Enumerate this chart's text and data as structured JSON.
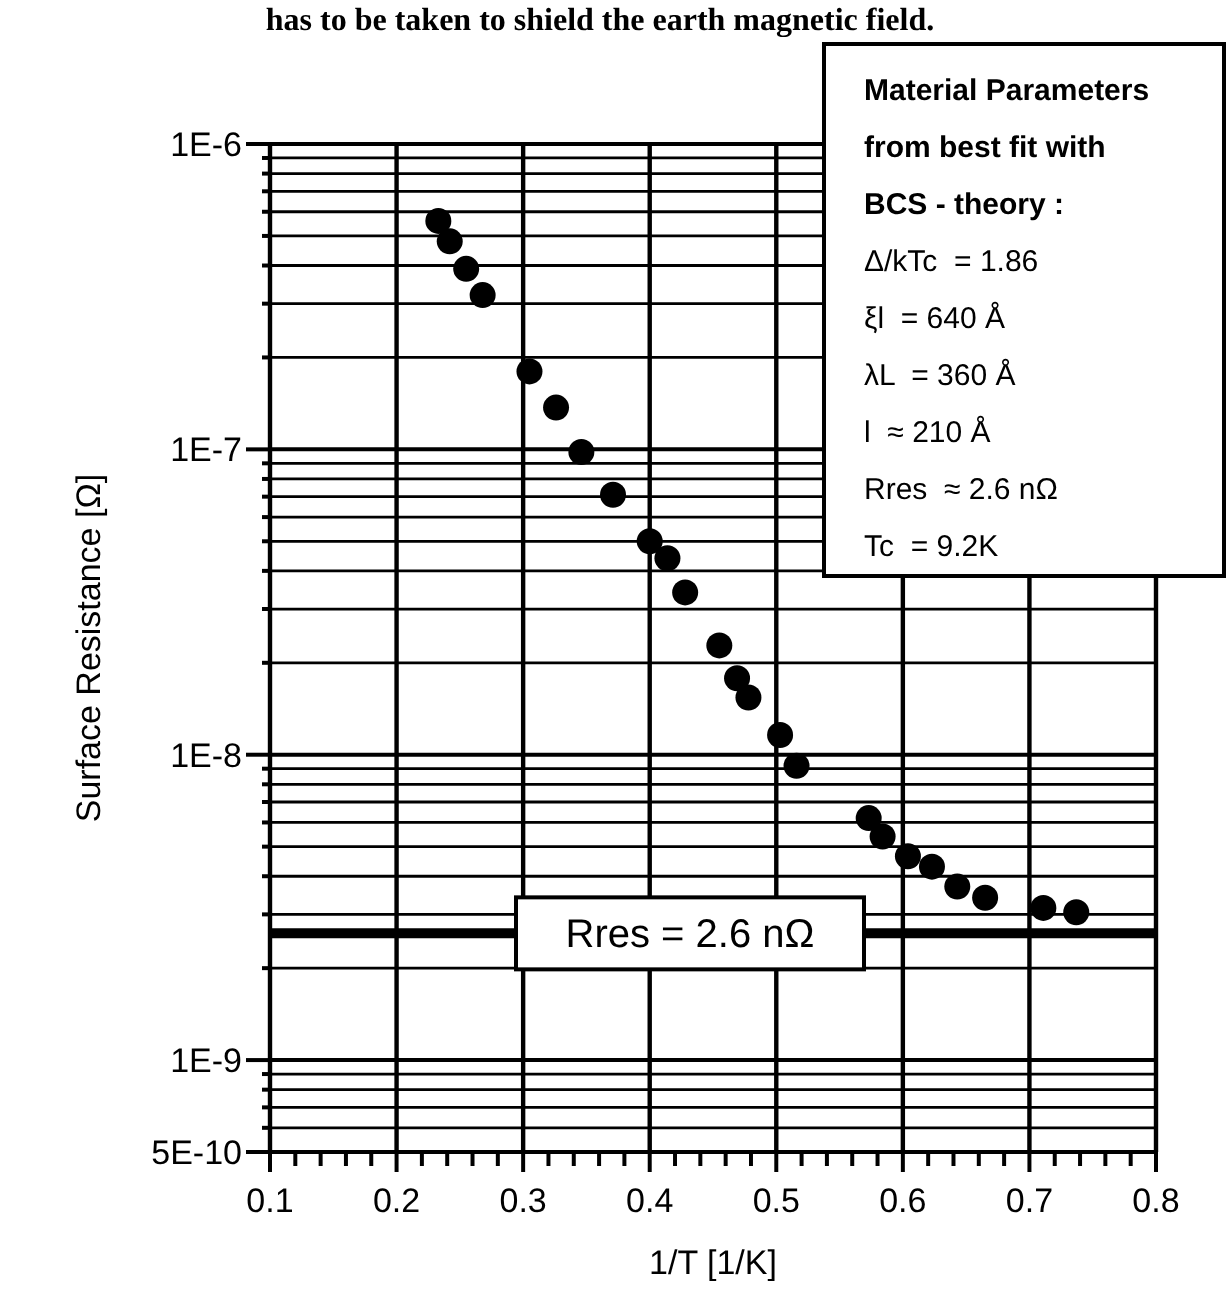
{
  "chart_data": {
    "type": "scatter",
    "xlabel": "1/T [1/K]",
    "ylabel": "Surface Resistance [Ω]",
    "log": "y",
    "grid": true,
    "marker": "circle",
    "xlim": [
      0.1,
      0.8
    ],
    "ylim": [
      5e-10,
      1e-06
    ],
    "xticks": [
      0.1,
      {
        "value": 0.12,
        "label": null
      },
      {
        "value": 0.14,
        "label": null
      },
      {
        "value": 0.16,
        "label": null
      },
      {
        "value": 0.18,
        "label": null
      },
      0.2,
      {
        "value": 0.22,
        "label": null
      },
      {
        "value": 0.24,
        "label": null
      },
      {
        "value": 0.26,
        "label": null
      },
      {
        "value": 0.28,
        "label": null
      },
      0.3,
      {
        "value": 0.32,
        "label": null
      },
      {
        "value": 0.34,
        "label": null
      },
      {
        "value": 0.36,
        "label": null
      },
      {
        "value": 0.38,
        "label": null
      },
      0.4,
      {
        "value": 0.42,
        "label": null
      },
      {
        "value": 0.44,
        "label": null
      },
      {
        "value": 0.46,
        "label": null
      },
      {
        "value": 0.48,
        "label": null
      },
      0.5,
      {
        "value": 0.52,
        "label": null
      },
      {
        "value": 0.54,
        "label": null
      },
      {
        "value": 0.56,
        "label": null
      },
      {
        "value": 0.58,
        "label": null
      },
      0.6,
      {
        "value": 0.62,
        "label": null
      },
      {
        "value": 0.64,
        "label": null
      },
      {
        "value": 0.66,
        "label": null
      },
      {
        "value": 0.68,
        "label": null
      },
      0.7,
      {
        "value": 0.72,
        "label": null
      },
      {
        "value": 0.74,
        "label": null
      },
      {
        "value": 0.76,
        "label": null
      },
      {
        "value": 0.78,
        "label": null
      },
      0.8
    ],
    "yticks": [
      {
        "value": 5e-10,
        "label": "5E-10"
      },
      {
        "value": 6e-10,
        "label": null
      },
      {
        "value": 7e-10,
        "label": null
      },
      {
        "value": 8e-10,
        "label": null
      },
      {
        "value": 9e-10,
        "label": null
      },
      {
        "value": 1e-09,
        "label": "1E-9"
      },
      {
        "value": 2e-09,
        "label": null
      },
      {
        "value": 3e-09,
        "label": null
      },
      {
        "value": 4e-09,
        "label": null
      },
      {
        "value": 5e-09,
        "label": null
      },
      {
        "value": 6e-09,
        "label": null
      },
      {
        "value": 7e-09,
        "label": null
      },
      {
        "value": 8e-09,
        "label": null
      },
      {
        "value": 9e-09,
        "label": null
      },
      {
        "value": 1e-08,
        "label": "1E-8"
      },
      {
        "value": 2e-08,
        "label": null
      },
      {
        "value": 3e-08,
        "label": null
      },
      {
        "value": 4e-08,
        "label": null
      },
      {
        "value": 5e-08,
        "label": null
      },
      {
        "value": 6e-08,
        "label": null
      },
      {
        "value": 7e-08,
        "label": null
      },
      {
        "value": 8e-08,
        "label": null
      },
      {
        "value": 9e-08,
        "label": null
      },
      {
        "value": 1e-07,
        "label": "1E-7"
      },
      {
        "value": 2e-07,
        "label": null
      },
      {
        "value": 3e-07,
        "label": null
      },
      {
        "value": 4e-07,
        "label": null
      },
      {
        "value": 5e-07,
        "label": null
      },
      {
        "value": 6e-07,
        "label": null
      },
      {
        "value": 7e-07,
        "label": null
      },
      {
        "value": 8e-07,
        "label": null
      },
      {
        "value": 9e-07,
        "label": null
      },
      {
        "value": 1e-06,
        "label": "1E-6"
      }
    ],
    "series": [
      {
        "color": "#000000",
        "x": [
          0.233,
          0.242,
          0.255,
          0.268,
          0.305,
          0.326,
          0.346,
          0.371,
          0.4,
          0.414,
          0.428,
          0.455,
          0.469,
          0.478,
          0.503,
          0.516,
          0.573,
          0.584,
          0.604,
          0.623,
          0.643,
          0.665,
          0.711,
          0.737
        ],
        "values": [
          5.6e-07,
          4.8e-07,
          3.9e-07,
          3.2e-07,
          1.8e-07,
          1.37e-07,
          9.8e-08,
          7.1e-08,
          5e-08,
          4.4e-08,
          3.4e-08,
          2.28e-08,
          1.78e-08,
          1.54e-08,
          1.16e-08,
          9.2e-09,
          6.2e-09,
          5.4e-09,
          4.65e-09,
          4.3e-09,
          3.7e-09,
          3.4e-09,
          3.15e-09,
          3.05e-09
        ]
      }
    ],
    "ref_lines": [
      {
        "axis": "y",
        "value": 2.6e-09,
        "label": "Rres = 2.6 nΩ",
        "color": "#000000"
      }
    ],
    "annotations": [
      "has to be taken to shield the earth magnetic field.",
      "Material Parameters",
      "from best fit with",
      "BCS - theory :",
      "Δ/kTc  = 1.86",
      "ξl  = 640 Å",
      "λL  = 360 Å",
      "l  ≈ 210 Å",
      "Rres  ≈ 2.6 nΩ",
      "Tc  = 9.2K"
    ]
  }
}
